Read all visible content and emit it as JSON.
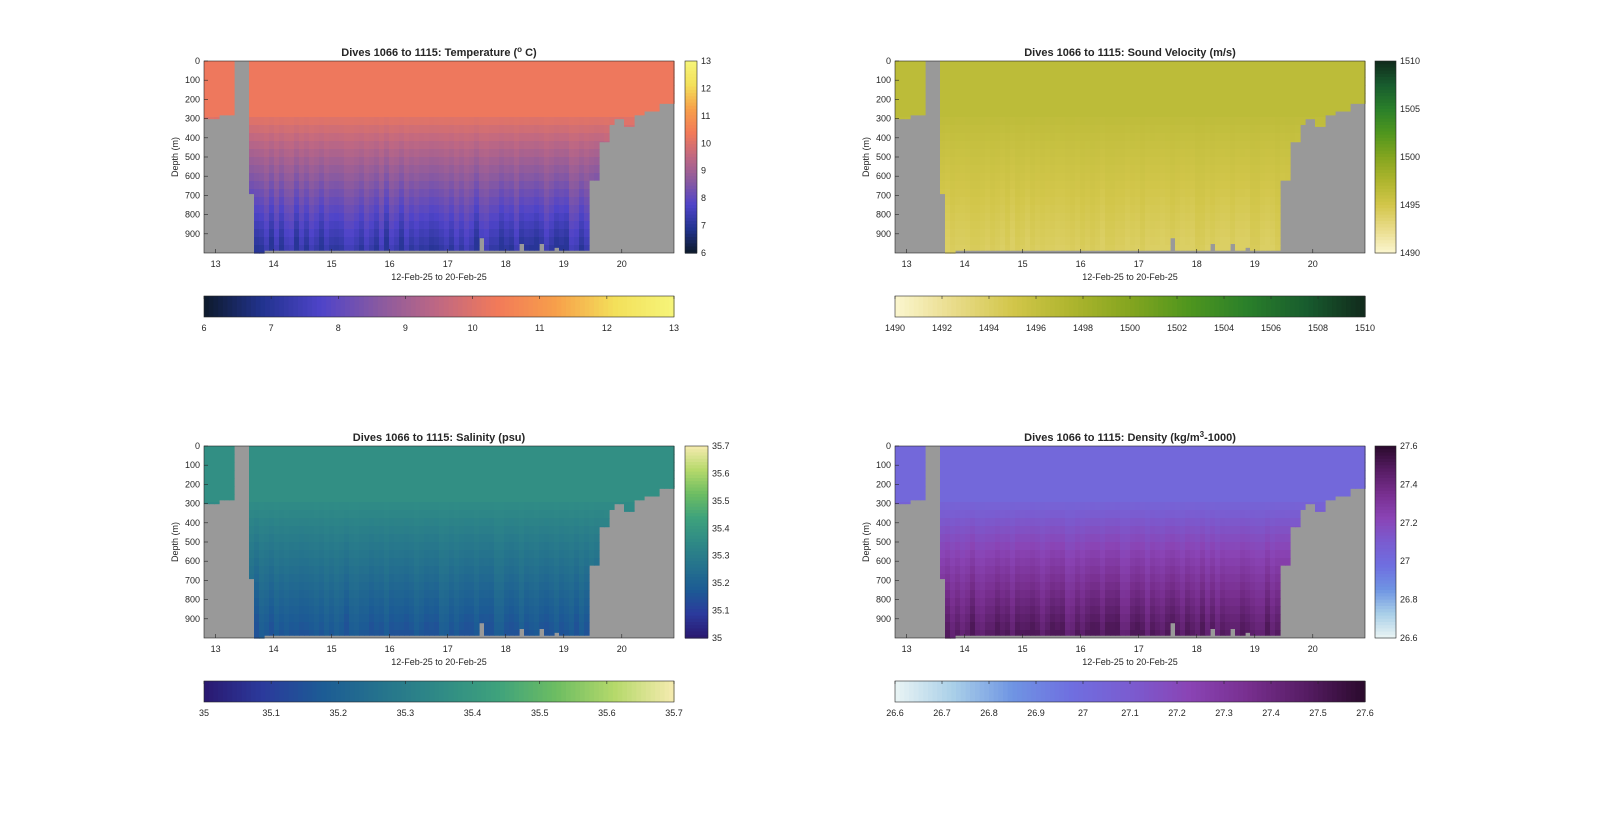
{
  "figure": {
    "background": "#ffffff",
    "bathymetry_color": "#999999"
  },
  "chart_data": [
    {
      "type": "heatmap",
      "title_main": "Dives 1066 to 1115: Temperature (",
      "title_sup": "o",
      "title_tail": " C)",
      "xlabel": "12-Feb-25 to 20-Feb-25",
      "ylabel": "Depth (m)",
      "x_ticks": [
        "13",
        "14",
        "15",
        "16",
        "17",
        "18",
        "19",
        "20"
      ],
      "y_ticks": [
        "0",
        "100",
        "200",
        "300",
        "400",
        "500",
        "600",
        "700",
        "800",
        "900"
      ],
      "ylim": [
        0,
        1000
      ],
      "xlim_days": [
        12.8,
        20.9
      ],
      "colormap": [
        "#0d1a2b",
        "#22338f",
        "#4f44c9",
        "#8a5aa0",
        "#c06882",
        "#f27a59",
        "#f7a04a",
        "#f3e05a",
        "#f6f57a"
      ],
      "clim": [
        6,
        13
      ],
      "surface_value": 10.3,
      "deep_value": 7.0,
      "right_colorbar_ticks": [
        "6",
        "7",
        "8",
        "9",
        "10",
        "11",
        "12",
        "13"
      ],
      "bottom_colorbar_ticks": [
        "6",
        "7",
        "8",
        "9",
        "10",
        "11",
        "12",
        "13"
      ]
    },
    {
      "type": "heatmap",
      "title_main": "Dives 1066 to 1115: Sound Velocity (m/s)",
      "title_sup": "",
      "title_tail": "",
      "xlabel": "12-Feb-25 to 20-Feb-25",
      "ylabel": "Depth (m)",
      "x_ticks": [
        "13",
        "14",
        "15",
        "16",
        "17",
        "18",
        "19",
        "20"
      ],
      "y_ticks": [
        "0",
        "100",
        "200",
        "300",
        "400",
        "500",
        "600",
        "700",
        "800",
        "900"
      ],
      "ylim": [
        0,
        1000
      ],
      "xlim_days": [
        12.8,
        20.9
      ],
      "colormap": [
        "#fbf6cf",
        "#e9dc8a",
        "#d2c64a",
        "#aeb52e",
        "#84a51f",
        "#4f961e",
        "#2a7f2a",
        "#185c2e",
        "#112a1c"
      ],
      "clim": [
        1490,
        1510
      ],
      "surface_value": 1496.5,
      "deep_value": 1494.0,
      "right_colorbar_ticks": [
        "1490",
        "1495",
        "1500",
        "1505",
        "1510"
      ],
      "bottom_colorbar_ticks": [
        "1490",
        "1492",
        "1494",
        "1496",
        "1498",
        "1500",
        "1502",
        "1504",
        "1506",
        "1508",
        "1510"
      ]
    },
    {
      "type": "heatmap",
      "title_main": "Dives 1066 to 1115: Salinity (psu)",
      "title_sup": "",
      "title_tail": "",
      "xlabel": "12-Feb-25 to 20-Feb-25",
      "ylabel": "Depth (m)",
      "x_ticks": [
        "13",
        "14",
        "15",
        "16",
        "17",
        "18",
        "19",
        "20"
      ],
      "y_ticks": [
        "0",
        "100",
        "200",
        "300",
        "400",
        "500",
        "600",
        "700",
        "800",
        "900"
      ],
      "ylim": [
        0,
        1000
      ],
      "xlim_days": [
        12.8,
        20.9
      ],
      "colormap": [
        "#2a1870",
        "#2b3a9c",
        "#1c5b95",
        "#25738d",
        "#2f8a86",
        "#3ea27c",
        "#6dbd62",
        "#b6d96b",
        "#f6ebb0"
      ],
      "clim": [
        35,
        35.7
      ],
      "surface_value": 35.37,
      "deep_value": 35.15,
      "right_colorbar_ticks": [
        "35",
        "35.1",
        "35.2",
        "35.3",
        "35.4",
        "35.5",
        "35.6",
        "35.7"
      ],
      "bottom_colorbar_ticks": [
        "35",
        "35.1",
        "35.2",
        "35.3",
        "35.4",
        "35.5",
        "35.6",
        "35.7"
      ]
    },
    {
      "type": "heatmap",
      "title_main": "Dives 1066 to 1115: Density (kg/m",
      "title_sup": "3",
      "title_tail": "-1000)",
      "xlabel": "12-Feb-25 to 20-Feb-25",
      "ylabel": "Depth (m)",
      "x_ticks": [
        "13",
        "14",
        "15",
        "16",
        "17",
        "18",
        "19",
        "20"
      ],
      "y_ticks": [
        "0",
        "100",
        "200",
        "300",
        "400",
        "500",
        "600",
        "700",
        "800",
        "900"
      ],
      "ylim": [
        0,
        1000
      ],
      "xlim_days": [
        12.8,
        20.9
      ],
      "colormap": [
        "#eaf4f4",
        "#a9cfe8",
        "#6f95e3",
        "#6f6fe0",
        "#7a5cd0",
        "#8a44b5",
        "#782f8f",
        "#561c63",
        "#2a0a2c"
      ],
      "clim": [
        26.6,
        27.6
      ],
      "surface_value": 27.02,
      "deep_value": 27.5,
      "right_colorbar_ticks": [
        "26.6",
        "26.8",
        "27",
        "27.2",
        "27.4",
        "27.6"
      ],
      "bottom_colorbar_ticks": [
        "26.6",
        "26.7",
        "26.8",
        "26.9",
        "27",
        "27.1",
        "27.2",
        "27.3",
        "27.4",
        "27.5",
        "27.6"
      ]
    }
  ]
}
